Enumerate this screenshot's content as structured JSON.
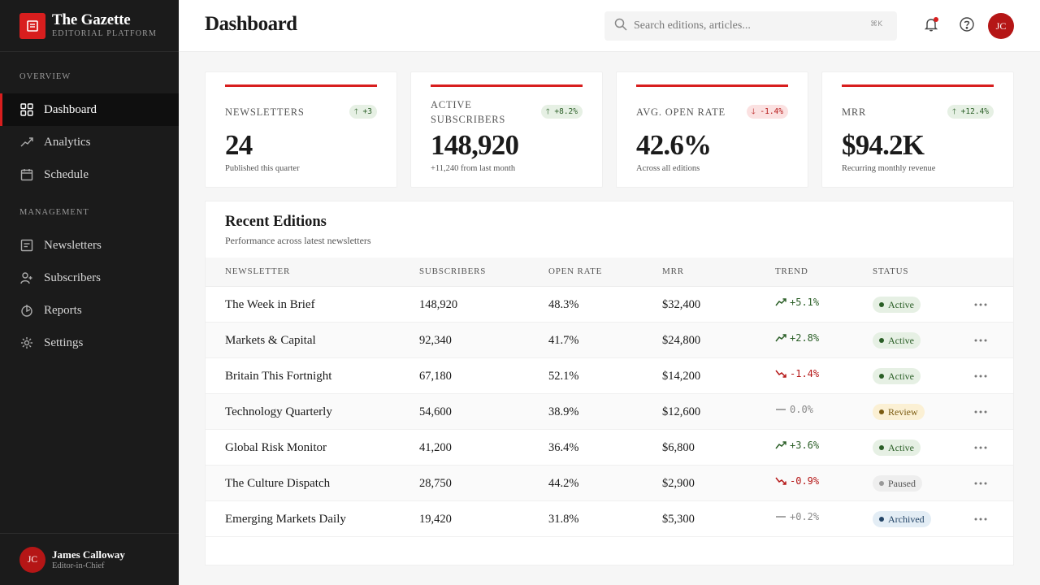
{
  "brand": {
    "title": "The Gazette",
    "subtitle": "EDITORIAL PLATFORM"
  },
  "sidebar": {
    "sections": [
      {
        "label": "OVERVIEW",
        "items": [
          {
            "label": "Dashboard",
            "icon": "grid-icon",
            "active": true
          },
          {
            "label": "Analytics",
            "icon": "trend-line-icon"
          },
          {
            "label": "Schedule",
            "icon": "calendar-icon"
          }
        ]
      },
      {
        "label": "MANAGEMENT",
        "items": [
          {
            "label": "Newsletters",
            "icon": "newsletter-icon"
          },
          {
            "label": "Subscribers",
            "icon": "user-icon"
          },
          {
            "label": "Reports",
            "icon": "report-icon"
          },
          {
            "label": "Settings",
            "icon": "gear-icon"
          }
        ]
      }
    ]
  },
  "user": {
    "initials": "JC",
    "name": "James Calloway",
    "role": "Editor-in-Chief"
  },
  "header": {
    "title": "Dashboard",
    "search_placeholder": "Search editions, articles...",
    "search_shortcut": "⌘K",
    "avatar_initials": "JC"
  },
  "stats": [
    {
      "label": "NEWSLETTERS",
      "delta": "+3",
      "direction": "up",
      "value": "24",
      "note": "Published this quarter"
    },
    {
      "label": "ACTIVE SUBSCRIBERS",
      "delta": "+8.2%",
      "direction": "up",
      "value": "148,920",
      "note": "+11,240 from last month"
    },
    {
      "label": "AVG. OPEN RATE",
      "delta": "-1.4%",
      "direction": "down",
      "value": "42.6%",
      "note": "Across all editions"
    },
    {
      "label": "MRR",
      "delta": "+12.4%",
      "direction": "up",
      "value": "$94.2K",
      "note": "Recurring monthly revenue"
    }
  ],
  "editions": {
    "title": "Recent Editions",
    "subtitle": "Performance across latest newsletters",
    "columns": [
      "NEWSLETTER",
      "SUBSCRIBERS",
      "OPEN RATE",
      "MRR",
      "TREND",
      "STATUS"
    ],
    "rows": [
      {
        "name": "The Week in Brief",
        "subscribers": "148,920",
        "open_rate": "48.3%",
        "mrr": "$32,400",
        "trend": "+5.1%",
        "trend_dir": "pos",
        "status": "Active",
        "status_kind": "active"
      },
      {
        "name": "Markets & Capital",
        "subscribers": "92,340",
        "open_rate": "41.7%",
        "mrr": "$24,800",
        "trend": "+2.8%",
        "trend_dir": "pos",
        "status": "Active",
        "status_kind": "active"
      },
      {
        "name": "Britain This Fortnight",
        "subscribers": "67,180",
        "open_rate": "52.1%",
        "mrr": "$14,200",
        "trend": "-1.4%",
        "trend_dir": "neg",
        "status": "Active",
        "status_kind": "active"
      },
      {
        "name": "Technology Quarterly",
        "subscribers": "54,600",
        "open_rate": "38.9%",
        "mrr": "$12,600",
        "trend": "0.0%",
        "trend_dir": "flat",
        "status": "Review",
        "status_kind": "review"
      },
      {
        "name": "Global Risk Monitor",
        "subscribers": "41,200",
        "open_rate": "36.4%",
        "mrr": "$6,800",
        "trend": "+3.6%",
        "trend_dir": "pos",
        "status": "Active",
        "status_kind": "active"
      },
      {
        "name": "The Culture Dispatch",
        "subscribers": "28,750",
        "open_rate": "44.2%",
        "mrr": "$2,900",
        "trend": "-0.9%",
        "trend_dir": "neg",
        "status": "Paused",
        "status_kind": "paused"
      },
      {
        "name": "Emerging Markets Daily",
        "subscribers": "19,420",
        "open_rate": "31.8%",
        "mrr": "$5,300",
        "trend": "+0.2%",
        "trend_dir": "flat",
        "status": "Archived",
        "status_kind": "archived"
      }
    ]
  },
  "colors": {
    "accent": "#d81e1e",
    "sidebar_bg": "#1b1b1b",
    "positive": "#2a5e26",
    "negative": "#b51616"
  }
}
